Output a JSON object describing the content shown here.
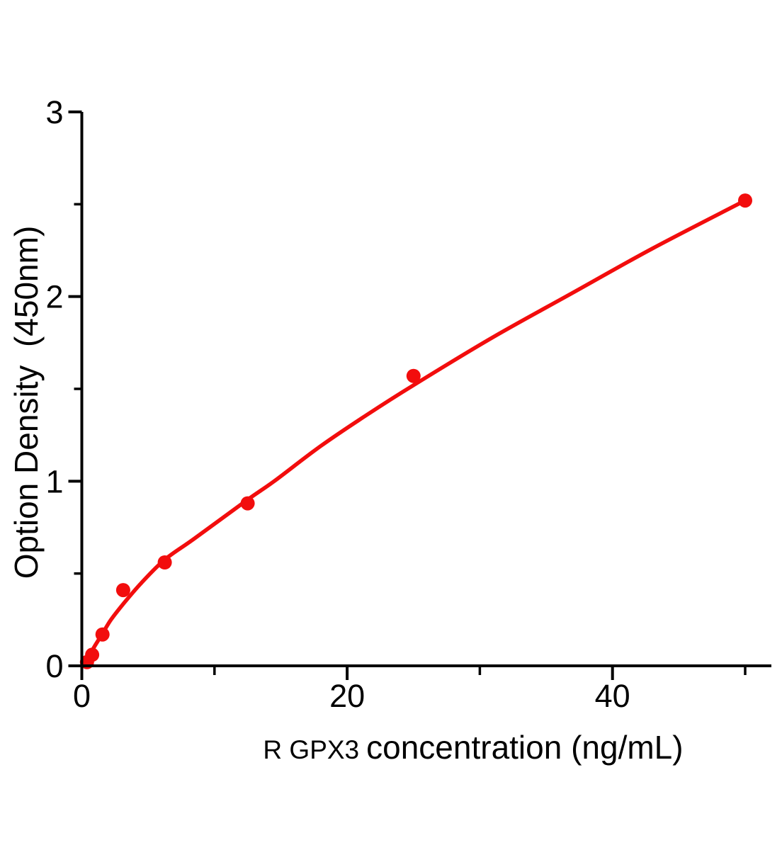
{
  "figure": {
    "background_color": "#ffffff",
    "axis_color": "#000000",
    "accent_color": "#f20d0d"
  },
  "chart_data": {
    "type": "scatter",
    "title": "",
    "xlabel_prefix": "R GPX3",
    "xlabel_main": "concentration (ng/mL)",
    "ylabel": "Option Density  (450nm)",
    "xlim": [
      0,
      51.9
    ],
    "ylim": [
      0,
      3
    ],
    "x_ticks_major": [
      0,
      20,
      40
    ],
    "x_ticks_minor": [
      10,
      30,
      50
    ],
    "y_ticks_major": [
      0,
      1,
      2,
      3
    ],
    "y_ticks_minor": [
      0.5,
      1.5,
      2.5
    ],
    "grid": false,
    "legend": false,
    "marker_color": "#f20d0d",
    "line_color": "#f20d0d",
    "points": [
      {
        "x": 0.39,
        "od": 0.02
      },
      {
        "x": 0.78,
        "od": 0.06
      },
      {
        "x": 1.56,
        "od": 0.17
      },
      {
        "x": 3.12,
        "od": 0.41
      },
      {
        "x": 6.25,
        "od": 0.56
      },
      {
        "x": 12.5,
        "od": 0.88
      },
      {
        "x": 25,
        "od": 1.57
      },
      {
        "x": 50,
        "od": 2.52
      }
    ],
    "fit_curve": [
      [
        0,
        0
      ],
      [
        0.5,
        0.05
      ],
      [
        1,
        0.11
      ],
      [
        1.56,
        0.175
      ],
      [
        2.2,
        0.25
      ],
      [
        3.12,
        0.335
      ],
      [
        4.5,
        0.45
      ],
      [
        6.25,
        0.575
      ],
      [
        8.5,
        0.69
      ],
      [
        12.5,
        0.9
      ],
      [
        14.5,
        1.0
      ],
      [
        18,
        1.19
      ],
      [
        21.5,
        1.36
      ],
      [
        25,
        1.52
      ],
      [
        31,
        1.78
      ],
      [
        37,
        2.02
      ],
      [
        43,
        2.26
      ],
      [
        50,
        2.52
      ]
    ]
  }
}
